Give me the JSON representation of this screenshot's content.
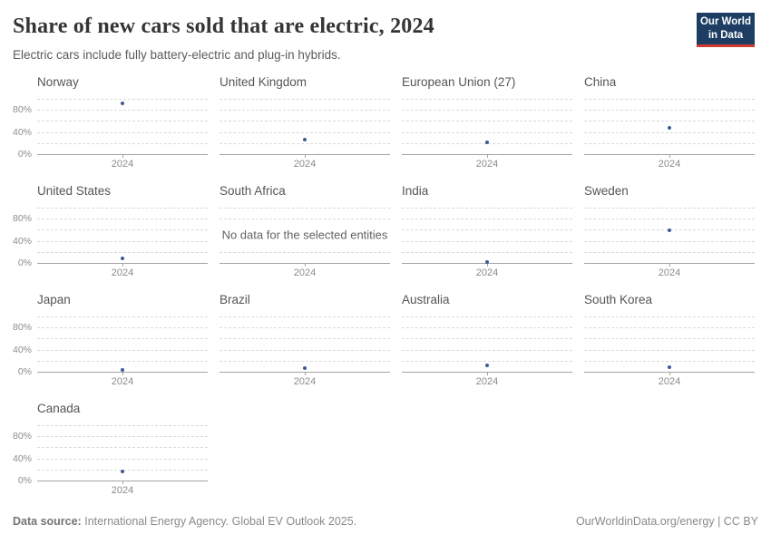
{
  "header": {
    "title": "Share of new cars sold that are electric, 2024",
    "subtitle": "Electric cars include fully battery-electric and plug-in hybrids.",
    "logo": {
      "line1": "Our World",
      "line2": "in Data"
    }
  },
  "chart_data": {
    "type": "scatter",
    "title": "Share of new cars sold that are electric, 2024",
    "xlabel": "",
    "ylabel": "",
    "x": [
      "2024"
    ],
    "ylim": [
      0,
      100
    ],
    "gridlines": [
      0,
      20,
      40,
      60,
      80,
      100
    ],
    "grid": "dashed horizontal",
    "ytick_labels": [
      {
        "label": "0%",
        "value": 0
      },
      {
        "label": "40%",
        "value": 40
      },
      {
        "label": "80%",
        "value": 80
      }
    ],
    "unit": "%",
    "x_tick_label": "2024",
    "no_data_text": "No data for the selected entities",
    "facets": [
      {
        "name": "Norway",
        "year": "2024",
        "value": 92
      },
      {
        "name": "United Kingdom",
        "year": "2024",
        "value": 27
      },
      {
        "name": "European Union (27)",
        "year": "2024",
        "value": 21
      },
      {
        "name": "China",
        "year": "2024",
        "value": 48
      },
      {
        "name": "United States",
        "year": "2024",
        "value": 9
      },
      {
        "name": "South Africa",
        "year": "2024",
        "value": null,
        "no_data": true
      },
      {
        "name": "India",
        "year": "2024",
        "value": 2
      },
      {
        "name": "Sweden",
        "year": "2024",
        "value": 59
      },
      {
        "name": "Japan",
        "year": "2024",
        "value": 3
      },
      {
        "name": "Brazil",
        "year": "2024",
        "value": 6
      },
      {
        "name": "Australia",
        "year": "2024",
        "value": 11
      },
      {
        "name": "South Korea",
        "year": "2024",
        "value": 8
      },
      {
        "name": "Canada",
        "year": "2024",
        "value": 16
      }
    ]
  },
  "footer": {
    "source_label": "Data source:",
    "source_text": "International Energy Agency. Global EV Outlook 2025.",
    "url": "OurWorldinData.org/energy",
    "separator": "|",
    "license": "CC BY"
  },
  "colors": {
    "dot": "#3d5c94",
    "logo_bg": "#1d3d63",
    "logo_accent": "#cf3a31",
    "gridline": "#dadada",
    "axis": "#a3a3a3"
  }
}
